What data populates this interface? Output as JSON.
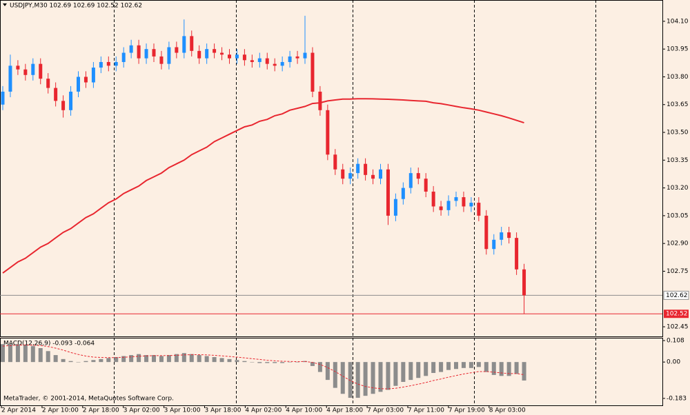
{
  "chart_data": {
    "type": "candlestick",
    "title": "USDJPY,M30  102.69 102.69 102.52 102.62",
    "footer": "MetaTrader, © 2001-2014, MetaQuotes Software Corp.",
    "up_color": "#1e8fff",
    "down_color": "#e8262f",
    "ma_color": "#e8262f",
    "xlabels": [
      "2 Apr 2014",
      "2 Apr 10:00",
      "2 Apr 18:00",
      "3 Apr 02:00",
      "3 Apr 10:00",
      "3 Apr 18:00",
      "4 Apr 02:00",
      "4 Apr 10:00",
      "4 Apr 18:00",
      "7 Apr 03:00",
      "7 Apr 11:00",
      "7 Apr 19:00",
      "8 Apr 03:00"
    ],
    "open": [
      103.65,
      103.72,
      103.86,
      103.84,
      103.81,
      103.87,
      103.79,
      103.74,
      103.67,
      103.62,
      103.72,
      103.8,
      103.77,
      103.85,
      103.88,
      103.86,
      103.88,
      103.93,
      103.97,
      103.9,
      103.95,
      103.91,
      103.87,
      103.96,
      103.93,
      104.02,
      103.94,
      103.9,
      103.95,
      103.93,
      103.92,
      103.9,
      103.92,
      103.89,
      103.88,
      103.9,
      103.87,
      103.86,
      103.88,
      103.91,
      103.9,
      103.93,
      103.72,
      103.62,
      103.38,
      103.3,
      103.25,
      103.28,
      103.33,
      103.27,
      103.25,
      103.3,
      103.05,
      103.14,
      103.2,
      103.28,
      103.25,
      103.18,
      103.1,
      103.08,
      103.13,
      103.15,
      103.1,
      103.12,
      103.05,
      102.87,
      102.92,
      102.96,
      102.93,
      102.76
    ],
    "high": [
      103.75,
      103.92,
      103.89,
      103.87,
      103.9,
      103.9,
      103.82,
      103.77,
      103.7,
      103.75,
      103.83,
      103.83,
      103.88,
      103.91,
      103.91,
      103.91,
      103.96,
      104.0,
      104.0,
      103.98,
      103.98,
      103.94,
      103.99,
      103.99,
      104.11,
      104.05,
      103.97,
      103.98,
      103.98,
      103.96,
      103.95,
      103.95,
      103.95,
      103.92,
      103.93,
      103.93,
      103.9,
      103.91,
      103.94,
      103.94,
      104.13,
      103.96,
      103.75,
      103.65,
      103.41,
      103.33,
      103.31,
      103.36,
      103.36,
      103.3,
      103.33,
      103.33,
      103.17,
      103.23,
      103.31,
      103.31,
      103.28,
      103.21,
      103.13,
      103.16,
      103.18,
      103.18,
      103.15,
      103.15,
      103.08,
      102.95,
      102.99,
      102.99,
      102.96,
      102.79
    ],
    "low": [
      103.62,
      103.69,
      103.81,
      103.78,
      103.78,
      103.76,
      103.71,
      103.64,
      103.58,
      103.59,
      103.69,
      103.74,
      103.74,
      103.82,
      103.83,
      103.83,
      103.85,
      103.9,
      103.87,
      103.87,
      103.88,
      103.84,
      103.84,
      103.9,
      103.9,
      103.91,
      103.87,
      103.87,
      103.9,
      103.89,
      103.87,
      103.87,
      103.86,
      103.85,
      103.85,
      103.84,
      103.83,
      103.83,
      103.85,
      103.87,
      103.87,
      103.69,
      103.59,
      103.35,
      103.27,
      103.22,
      103.22,
      103.25,
      103.24,
      103.22,
      103.22,
      103.0,
      103.02,
      103.11,
      103.17,
      103.22,
      103.15,
      103.07,
      103.05,
      103.05,
      103.1,
      103.07,
      103.07,
      103.02,
      102.84,
      102.84,
      102.89,
      102.9,
      102.73,
      102.52
    ],
    "close": [
      103.72,
      103.86,
      103.84,
      103.81,
      103.87,
      103.79,
      103.74,
      103.67,
      103.62,
      103.72,
      103.8,
      103.77,
      103.85,
      103.88,
      103.86,
      103.88,
      103.93,
      103.97,
      103.9,
      103.95,
      103.91,
      103.87,
      103.96,
      103.93,
      104.02,
      103.94,
      103.9,
      103.95,
      103.93,
      103.92,
      103.9,
      103.92,
      103.89,
      103.88,
      103.9,
      103.87,
      103.86,
      103.88,
      103.91,
      103.9,
      103.93,
      103.72,
      103.62,
      103.38,
      103.3,
      103.25,
      103.28,
      103.33,
      103.27,
      103.25,
      103.3,
      103.05,
      103.14,
      103.2,
      103.28,
      103.25,
      103.18,
      103.1,
      103.08,
      103.13,
      103.15,
      103.1,
      103.12,
      103.05,
      102.87,
      102.92,
      102.96,
      102.93,
      102.76,
      102.62
    ],
    "ma": [
      102.74,
      102.77,
      102.8,
      102.82,
      102.85,
      102.88,
      102.9,
      102.93,
      102.96,
      102.98,
      103.01,
      103.04,
      103.06,
      103.09,
      103.12,
      103.14,
      103.17,
      103.19,
      103.21,
      103.24,
      103.26,
      103.28,
      103.31,
      103.33,
      103.35,
      103.38,
      103.4,
      103.42,
      103.45,
      103.47,
      103.49,
      103.51,
      103.53,
      103.54,
      103.56,
      103.57,
      103.59,
      103.6,
      103.62,
      103.63,
      103.64,
      103.656,
      103.66,
      103.67,
      103.675,
      103.68,
      103.68,
      103.682,
      103.682,
      103.681,
      103.68,
      103.679,
      103.677,
      103.675,
      103.672,
      103.67,
      103.668,
      103.66,
      103.655,
      103.648,
      103.64,
      103.633,
      103.627,
      103.62,
      103.61,
      103.6,
      103.59,
      103.578,
      103.565,
      103.552
    ],
    "ylim": [
      102.398,
      104.215
    ],
    "yticks": [
      {
        "value": 104.1,
        "label": "104.10"
      },
      103.95,
      {
        "value": 103.8,
        "label": "103.80"
      },
      103.65,
      {
        "value": 103.5,
        "label": "103.50"
      },
      103.35,
      {
        "value": 103.2,
        "label": "103.20"
      },
      103.05,
      {
        "value": 102.9,
        "label": "102.90"
      },
      102.75,
      102.45
    ],
    "last_price": 102.62,
    "bid_price": 102.52,
    "macd": {
      "title": "MACD(12,26,9) -0.093 -0.064",
      "color": "#8c8c8c",
      "signal_color": "#e8262f",
      "ylim": [
        -0.218,
        0.122
      ],
      "yticks": [
        0.108,
        {
          "value": 0,
          "label": "0.00"
        },
        -0.183
      ],
      "histogram": [
        0.09,
        0.09,
        0.09,
        0.085,
        0.08,
        0.07,
        0.055,
        0.035,
        0.015,
        0.005,
        0.0,
        0.005,
        0.01,
        0.015,
        0.02,
        0.025,
        0.03,
        0.035,
        0.04,
        0.035,
        0.035,
        0.03,
        0.035,
        0.04,
        0.045,
        0.04,
        0.035,
        0.03,
        0.025,
        0.02,
        0.015,
        0.01,
        0.005,
        0.0,
        -0.005,
        -0.005,
        -0.005,
        -0.005,
        0.0,
        0.0,
        0.005,
        -0.02,
        -0.05,
        -0.09,
        -0.13,
        -0.16,
        -0.18,
        -0.18,
        -0.17,
        -0.16,
        -0.15,
        -0.14,
        -0.12,
        -0.1,
        -0.09,
        -0.08,
        -0.07,
        -0.055,
        -0.05,
        -0.04,
        -0.035,
        -0.03,
        -0.03,
        -0.025,
        -0.05,
        -0.065,
        -0.07,
        -0.07,
        -0.06,
        -0.093
      ],
      "signal": [
        0.08,
        0.083,
        0.085,
        0.086,
        0.085,
        0.083,
        0.078,
        0.07,
        0.06,
        0.048,
        0.038,
        0.03,
        0.025,
        0.023,
        0.022,
        0.022,
        0.024,
        0.026,
        0.029,
        0.031,
        0.032,
        0.032,
        0.033,
        0.034,
        0.036,
        0.037,
        0.037,
        0.036,
        0.034,
        0.031,
        0.028,
        0.025,
        0.021,
        0.017,
        0.013,
        0.009,
        0.006,
        0.004,
        0.003,
        0.002,
        0.003,
        -0.002,
        -0.012,
        -0.028,
        -0.048,
        -0.071,
        -0.093,
        -0.111,
        -0.123,
        -0.13,
        -0.134,
        -0.135,
        -0.132,
        -0.126,
        -0.119,
        -0.111,
        -0.103,
        -0.093,
        -0.085,
        -0.076,
        -0.068,
        -0.06,
        -0.054,
        -0.048,
        -0.048,
        -0.051,
        -0.055,
        -0.058,
        -0.058,
        -0.064
      ]
    }
  }
}
